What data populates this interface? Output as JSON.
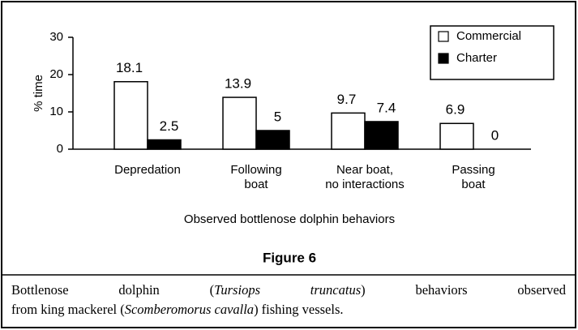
{
  "chart_data": {
    "type": "bar",
    "categories": [
      "Depredation",
      "Following\nboat",
      "Near boat,\nno interactions",
      "Passing\nboat"
    ],
    "series": [
      {
        "name": "Commercial",
        "color": "#ffffff",
        "values": [
          18.1,
          13.9,
          9.7,
          6.9
        ]
      },
      {
        "name": "Charter",
        "color": "#000000",
        "values": [
          2.5,
          5,
          7.4,
          0
        ]
      }
    ],
    "ylim": [
      0,
      30
    ],
    "yticks": [
      0,
      10,
      20,
      30
    ],
    "y_label": "% time",
    "x_label": "Observed bottlenose dolphin behaviors",
    "legend": "top-right",
    "figure_label": "Figure 6",
    "caption": [
      [
        "Bottlenose dolphin (",
        "Tursiops truncatus",
        ") behaviors observed"
      ],
      [
        "from king mackerel (",
        "Scomberomorus cavalla",
        ") fishing vessels."
      ]
    ]
  }
}
